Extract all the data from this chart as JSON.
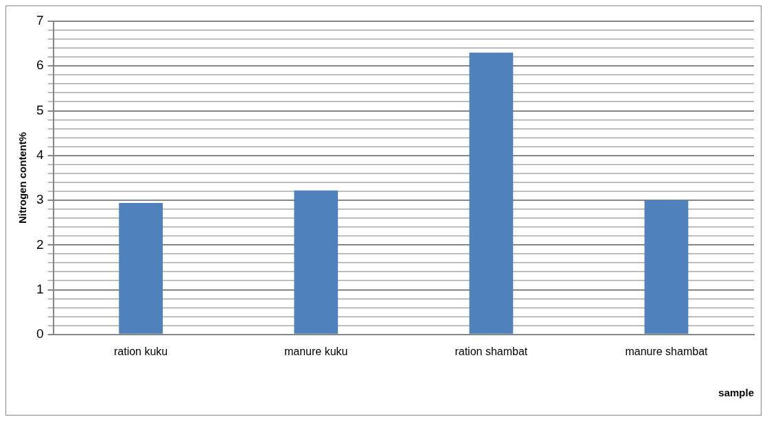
{
  "chart_data": {
    "type": "bar",
    "xlabel": "sample",
    "ylabel": "Nitrogen content%",
    "categories": [
      "ration kuku",
      "manure kuku",
      "ration shambat",
      "manure shambat"
    ],
    "values": [
      2.94,
      3.22,
      6.3,
      3.0
    ],
    "color": "#4f81bd",
    "ylim": [
      0,
      7
    ],
    "yticks": [
      0,
      {
        "value": 0.2,
        "label": null
      },
      {
        "value": 0.4,
        "label": null
      },
      {
        "value": 0.6,
        "label": null
      },
      {
        "value": 0.8,
        "label": null
      },
      1,
      {
        "value": 1.2,
        "label": null
      },
      {
        "value": 1.4,
        "label": null
      },
      {
        "value": 1.6,
        "label": null
      },
      {
        "value": 1.8,
        "label": null
      },
      2,
      {
        "value": 2.2,
        "label": null
      },
      {
        "value": 2.4,
        "label": null
      },
      {
        "value": 2.6,
        "label": null
      },
      {
        "value": 2.8,
        "label": null
      },
      3,
      {
        "value": 3.2,
        "label": null
      },
      {
        "value": 3.4,
        "label": null
      },
      {
        "value": 3.6,
        "label": null
      },
      {
        "value": 3.8,
        "label": null
      },
      4,
      {
        "value": 4.2,
        "label": null
      },
      {
        "value": 4.4,
        "label": null
      },
      {
        "value": 4.6,
        "label": null
      },
      {
        "value": 4.8,
        "label": null
      },
      5,
      {
        "value": 5.2,
        "label": null
      },
      {
        "value": 5.4,
        "label": null
      },
      {
        "value": 5.6,
        "label": null
      },
      {
        "value": 5.8,
        "label": null
      },
      6,
      {
        "value": 6.2,
        "label": null
      },
      {
        "value": 6.4,
        "label": null
      },
      {
        "value": 6.6,
        "label": null
      },
      {
        "value": 6.8,
        "label": null
      },
      7
    ],
    "grid": "y",
    "legend": false
  }
}
